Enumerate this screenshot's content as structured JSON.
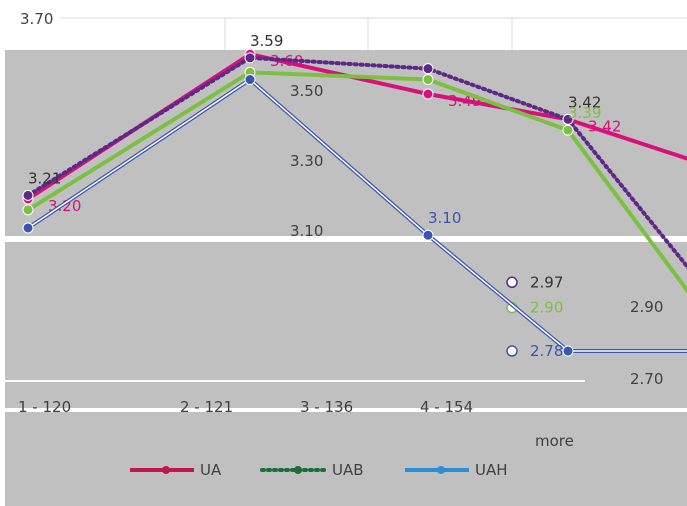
{
  "chart_data": {
    "type": "line",
    "title": "",
    "xlabel": "",
    "ylabel": "",
    "categories": [
      "1 - 120",
      "2 - 121",
      "3 - 136",
      "4 - 154",
      "more"
    ],
    "y_ticks": [
      "3.70",
      "3.50",
      "3.30",
      "3.10",
      "2.90",
      "2.70"
    ],
    "ylim": [
      2.7,
      3.7
    ],
    "series": [
      {
        "name": "UA",
        "color": "#d6127a",
        "style": "solid",
        "values": [
          3.2,
          3.6,
          3.49,
          3.42,
          3.3
        ],
        "labels": [
          "3.20",
          "3.60",
          "3.49",
          "3.42",
          ""
        ]
      },
      {
        "name": "UAB",
        "color": "#5c2a86",
        "style": "dotted",
        "values": [
          3.21,
          3.59,
          3.56,
          3.42,
          2.97
        ],
        "labels": [
          "3.21",
          "3.59",
          "",
          "3.42",
          "2.97"
        ]
      },
      {
        "name": "UAH",
        "color": "#7bc043",
        "style": "solid",
        "values": [
          3.17,
          3.55,
          3.53,
          3.39,
          2.9
        ],
        "labels": [
          "",
          "",
          "",
          "3.39",
          "2.90"
        ]
      },
      {
        "name": "",
        "color": "#3a54b4",
        "style": "double",
        "values": [
          3.12,
          3.53,
          3.1,
          2.78,
          2.78
        ],
        "labels": [
          "",
          "",
          "3.10",
          "",
          "2.78"
        ]
      }
    ],
    "legend": {
      "placement": "bottom",
      "entries": [
        "UA",
        "UAB",
        "UAH"
      ],
      "colors": [
        "#c0174f",
        "#1f6b3a",
        "#2a8fd8"
      ],
      "styles": [
        "solid",
        "dotted",
        "solid"
      ]
    },
    "grid": true,
    "gray_overlay_color": "#c0c0c0"
  }
}
